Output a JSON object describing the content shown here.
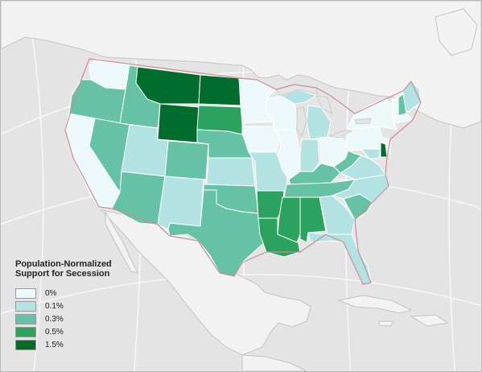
{
  "legend": {
    "title_line1": "Population-Normalized",
    "title_line2": "Support for Secession",
    "items": [
      {
        "label": "0%",
        "color": "#edf8fb"
      },
      {
        "label": "0.1%",
        "color": "#b2e2e2"
      },
      {
        "label": "0.3%",
        "color": "#66c2a4"
      },
      {
        "label": "0.5%",
        "color": "#2ca25f"
      },
      {
        "label": "1.5%",
        "color": "#006d2c"
      }
    ]
  },
  "map_data": {
    "type": "choropleth",
    "region": "United States",
    "bins": [
      "0%",
      "0.1%",
      "0.3%",
      "0.5%",
      "1.5%"
    ],
    "states": {
      "WA": "0%",
      "OR": "0.3%",
      "CA": "0%",
      "ID": "0.3%",
      "NV": "0.3%",
      "MT": "1.5%",
      "WY": "1.5%",
      "UT": "0.1%",
      "AZ": "0.3%",
      "CO": "0.3%",
      "NM": "0.1%",
      "ND": "1.5%",
      "SD": "0.5%",
      "NE": "0.3%",
      "KS": "0.1%",
      "OK": "0.3%",
      "TX": "0.3%",
      "MN": "0%",
      "IA": "0%",
      "MO": "0.1%",
      "AR": "0.5%",
      "LA": "0.5%",
      "WI": "0%",
      "IL": "0%",
      "MS": "0.5%",
      "MI": "0.1%",
      "IN": "0.1%",
      "OH": "0%",
      "KY": "0.3%",
      "TN": "0.3%",
      "AL": "0.5%",
      "GA": "0.1%",
      "FL": "0.1%",
      "SC": "0.3%",
      "NC": "0.1%",
      "VA": "0.1%",
      "WV": "0.3%",
      "PA": "0%",
      "NY": "0%",
      "ME": "0.1%",
      "VT": "0%",
      "NH": "0.3%",
      "MA": "0%",
      "NJ": "0%",
      "MD": "0.1%",
      "DE": "1.5%"
    }
  }
}
